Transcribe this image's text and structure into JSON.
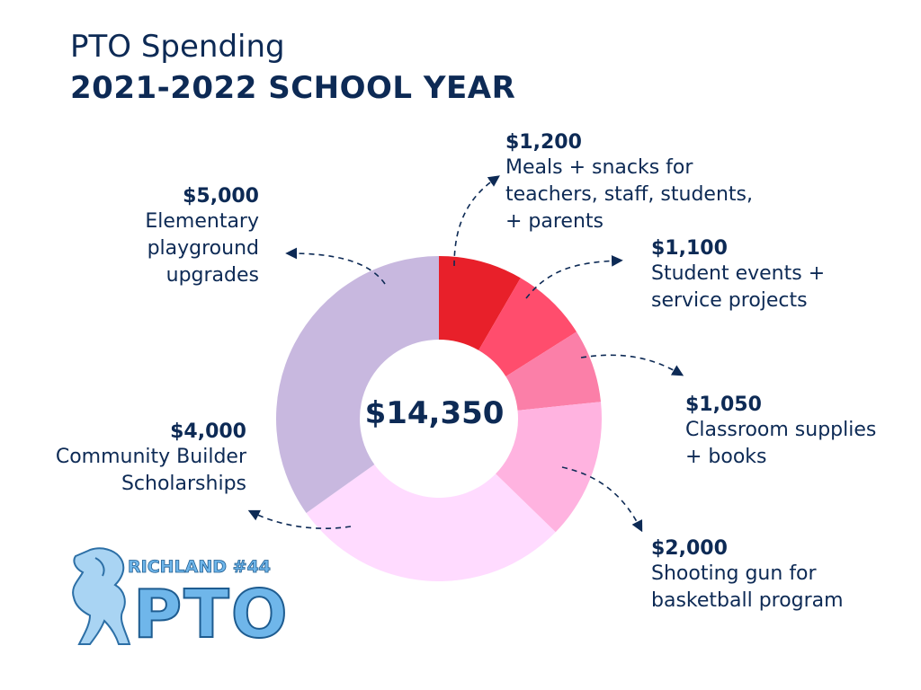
{
  "title": "PTO Spending",
  "subtitle": "2021-2022 SCHOOL YEAR",
  "logo": {
    "line1": "RICHLAND #44",
    "line2": "PTO"
  },
  "chart_data": {
    "type": "pie",
    "variant": "donut",
    "total_label": "$14,350",
    "slices": [
      {
        "amount_label": "$1,200",
        "description": "Meals + snacks for\nteachers, staff, students,\n+ parents",
        "value": 1200,
        "color": "#e8202a"
      },
      {
        "amount_label": "$1,100",
        "description": "Student events +\nservice projects",
        "value": 1100,
        "color": "#ff4d6d"
      },
      {
        "amount_label": "$1,050",
        "description": "Classroom supplies\n+ books",
        "value": 1050,
        "color": "#fb7fa8"
      },
      {
        "amount_label": "$2,000",
        "description": "Shooting gun for\nbasketball program",
        "value": 2000,
        "color": "#ffb3e0"
      },
      {
        "amount_label": "$4,000",
        "description": "Community Builder\nScholarships",
        "value": 4000,
        "color": "#ffdbff"
      },
      {
        "amount_label": "$5,000",
        "description": "Elementary\nplayground\nupgrades",
        "value": 5000,
        "color": "#c8b8df"
      }
    ]
  }
}
